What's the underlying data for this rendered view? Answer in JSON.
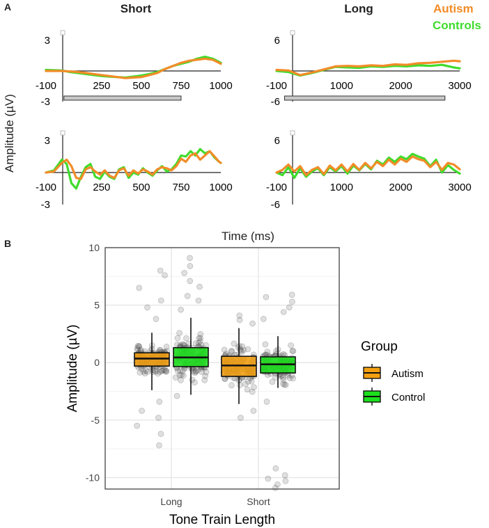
{
  "panel_a": {
    "letter": "A",
    "col_titles": [
      "Short",
      "Long"
    ],
    "ylabel": "Amplitude (µV)",
    "xlabel": "Time (ms)",
    "legend": [
      {
        "name": "Autism",
        "color": "#f28c28"
      },
      {
        "name": "Controls",
        "color": "#3fdc2c"
      }
    ]
  },
  "panel_b": {
    "letter": "B",
    "legend_title": "Group",
    "legend": [
      {
        "name": "Autism",
        "color": "#f5a011"
      },
      {
        "name": "Control",
        "color": "#1ce01c"
      }
    ]
  },
  "chart_data": [
    {
      "type": "line",
      "title": "Short (top)",
      "xlim": [
        -100,
        1000
      ],
      "ylim": [
        -3,
        3
      ],
      "xticks": [
        "-100",
        "250",
        "500",
        "750",
        "1000"
      ],
      "yticks": [
        "3",
        "-3"
      ],
      "stimulus_bar": [
        0,
        750
      ],
      "series": [
        {
          "name": "Autism",
          "x": [
            -100,
            0,
            50,
            100,
            150,
            200,
            250,
            300,
            350,
            400,
            450,
            500,
            550,
            600,
            650,
            700,
            750,
            800,
            850,
            900,
            950,
            1000
          ],
          "values": [
            0,
            0,
            -0.05,
            -0.1,
            -0.2,
            -0.3,
            -0.4,
            -0.5,
            -0.6,
            -0.7,
            -0.65,
            -0.6,
            -0.4,
            -0.2,
            0.2,
            0.5,
            0.8,
            1.0,
            1.1,
            1.2,
            1.1,
            0.7
          ]
        },
        {
          "name": "Controls",
          "x": [
            -100,
            0,
            50,
            100,
            150,
            200,
            250,
            300,
            350,
            400,
            450,
            500,
            550,
            600,
            650,
            700,
            750,
            800,
            850,
            900,
            950,
            1000
          ],
          "values": [
            0.1,
            0.05,
            -0.1,
            -0.2,
            -0.3,
            -0.4,
            -0.5,
            -0.55,
            -0.6,
            -0.65,
            -0.55,
            -0.45,
            -0.3,
            -0.1,
            0.2,
            0.5,
            0.7,
            0.9,
            1.2,
            1.4,
            1.2,
            0.8
          ]
        }
      ]
    },
    {
      "type": "line",
      "title": "Long (top)",
      "xlim": [
        -100,
        3000
      ],
      "ylim": [
        -6,
        6
      ],
      "xticks": [
        "-100",
        "1000",
        "2000",
        "3000"
      ],
      "yticks": [
        "6",
        "-6"
      ],
      "stimulus_bar": [
        0,
        2750
      ],
      "series": [
        {
          "name": "Autism",
          "x": [
            -100,
            100,
            300,
            500,
            700,
            900,
            1100,
            1300,
            1500,
            1700,
            1900,
            2100,
            2300,
            2500,
            2700,
            2900,
            3000
          ],
          "values": [
            0.2,
            0.1,
            -0.8,
            -0.3,
            0.3,
            0.9,
            1.0,
            0.9,
            1.1,
            1.0,
            1.3,
            1.2,
            1.5,
            1.6,
            1.8,
            2.0,
            1.9
          ]
        },
        {
          "name": "Controls",
          "x": [
            -100,
            100,
            300,
            500,
            700,
            900,
            1100,
            1300,
            1500,
            1700,
            1900,
            2100,
            2300,
            2500,
            2700,
            2900,
            3000
          ],
          "values": [
            0,
            -0.2,
            -0.9,
            -0.4,
            0.2,
            0.8,
            0.7,
            0.6,
            0.9,
            0.8,
            1.0,
            0.9,
            1.1,
            1.0,
            1.2,
            0.7,
            0.5
          ]
        }
      ]
    },
    {
      "type": "line",
      "title": "Short (bottom)",
      "xlim": [
        -100,
        1000
      ],
      "ylim": [
        -3,
        3
      ],
      "xticks": [
        "-100",
        "250",
        "500",
        "750",
        "1000"
      ],
      "yticks": [
        "3",
        "-3"
      ],
      "series": [
        {
          "name": "Autism",
          "x": [
            -100,
            -50,
            0,
            30,
            60,
            90,
            120,
            150,
            180,
            210,
            240,
            270,
            300,
            330,
            360,
            390,
            420,
            450,
            480,
            510,
            540,
            570,
            600,
            630,
            660,
            690,
            720,
            750,
            780,
            810,
            840,
            870,
            900,
            930,
            960,
            990,
            1000
          ],
          "values": [
            0,
            0.1,
            0.9,
            1.2,
            0.6,
            -0.5,
            -0.6,
            0.3,
            0.5,
            0.1,
            -0.2,
            0.2,
            -0.3,
            -0.5,
            0.2,
            0.4,
            -0.3,
            0.2,
            -0.1,
            0.3,
            0.1,
            -0.2,
            0.3,
            0.5,
            0.4,
            0.2,
            0.6,
            1.3,
            1.0,
            1.6,
            1.8,
            1.2,
            1.6,
            2.0,
            1.5,
            1.0,
            0.9
          ]
        },
        {
          "name": "Controls",
          "x": [
            -100,
            -50,
            0,
            30,
            60,
            90,
            120,
            150,
            180,
            210,
            240,
            270,
            300,
            330,
            360,
            390,
            420,
            450,
            480,
            510,
            540,
            570,
            600,
            630,
            660,
            690,
            720,
            750,
            780,
            810,
            840,
            870,
            900,
            930,
            960,
            990,
            1000
          ],
          "values": [
            0,
            0.2,
            1.2,
            0.8,
            -1.0,
            -1.5,
            -0.4,
            0.5,
            0.8,
            -0.4,
            -0.6,
            0.1,
            -0.4,
            -0.6,
            0.3,
            0.5,
            -0.5,
            0.0,
            -0.2,
            0.4,
            0.0,
            -0.3,
            0.2,
            0.6,
            0.1,
            0.3,
            0.8,
            1.6,
            1.5,
            2.0,
            1.6,
            2.2,
            1.8,
            2.0,
            1.4,
            1.0,
            0.9
          ]
        }
      ]
    },
    {
      "type": "line",
      "title": "Long (bottom)",
      "xlim": [
        -100,
        3000
      ],
      "ylim": [
        -6,
        6
      ],
      "xticks": [
        "-100",
        "1000",
        "2000",
        "3000"
      ],
      "yticks": [
        "6",
        "-6"
      ],
      "series": [
        {
          "name": "Autism",
          "x": [
            -100,
            0,
            100,
            200,
            300,
            400,
            500,
            600,
            700,
            800,
            900,
            1000,
            1100,
            1200,
            1300,
            1400,
            1500,
            1600,
            1700,
            1800,
            1900,
            2000,
            2100,
            2200,
            2300,
            2400,
            2500,
            2600,
            2700,
            2800,
            2900,
            3000
          ],
          "values": [
            0,
            0.5,
            1.5,
            0.2,
            1.2,
            -0.5,
            0.5,
            1.0,
            -0.3,
            1.3,
            0.4,
            1.5,
            0.2,
            1.6,
            0.5,
            1.8,
            0.8,
            2.0,
            1.2,
            2.4,
            1.5,
            2.6,
            2.0,
            3.0,
            2.5,
            2.2,
            1.0,
            2.0,
            0.5,
            1.8,
            1.5,
            0.6
          ]
        },
        {
          "name": "Controls",
          "x": [
            -100,
            0,
            100,
            200,
            300,
            400,
            500,
            600,
            700,
            800,
            900,
            1000,
            1100,
            1200,
            1300,
            1400,
            1500,
            1600,
            1700,
            1800,
            1900,
            2000,
            2100,
            2200,
            2300,
            2400,
            2500,
            2600,
            2700,
            2800,
            2900,
            3000
          ],
          "values": [
            0,
            -0.5,
            1.0,
            -1.0,
            0.8,
            -0.8,
            0.2,
            0.8,
            -0.5,
            1.0,
            0.2,
            1.2,
            -0.2,
            1.3,
            0.4,
            1.6,
            0.6,
            2.2,
            1.5,
            2.8,
            2.0,
            3.0,
            2.5,
            3.5,
            3.0,
            2.6,
            1.2,
            2.4,
            0.0,
            1.4,
            0.5,
            -0.2
          ]
        }
      ]
    },
    {
      "type": "box",
      "title": "",
      "xlabel": "Tone Train Length",
      "ylabel": "Amplitude (µV)",
      "categories": [
        "Long",
        "Short"
      ],
      "ylim": [
        -11,
        10
      ],
      "yticks": [
        -10,
        -5,
        0,
        5,
        10
      ],
      "series": [
        {
          "name": "Autism",
          "boxes": [
            {
              "category": "Long",
              "min": -2.4,
              "q1": -0.3,
              "median": 0.35,
              "q3": 0.85,
              "max": 2.6
            },
            {
              "category": "Short",
              "min": -3.6,
              "q1": -1.2,
              "median": -0.25,
              "q3": 0.55,
              "max": 3.0
            }
          ]
        },
        {
          "name": "Control",
          "boxes": [
            {
              "category": "Long",
              "min": -2.8,
              "q1": -0.35,
              "median": 0.45,
              "q3": 1.3,
              "max": 3.9
            },
            {
              "category": "Short",
              "min": -2.2,
              "q1": -0.9,
              "median": -0.15,
              "q3": 0.5,
              "max": 2.3
            }
          ]
        }
      ]
    }
  ]
}
